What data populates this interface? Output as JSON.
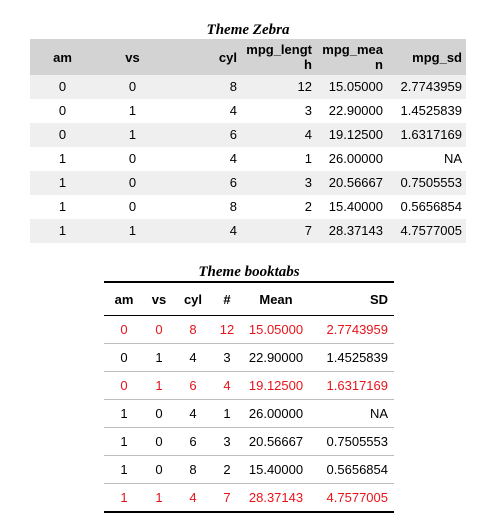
{
  "zebra_table": {
    "caption": "Theme Zebra",
    "headers": [
      "am",
      "vs",
      "cyl",
      "mpg_length",
      "mpg_mean",
      "mpg_sd"
    ],
    "rows": [
      [
        "0",
        "0",
        "8",
        "12",
        "15.05000",
        "2.7743959"
      ],
      [
        "0",
        "1",
        "4",
        "3",
        "22.90000",
        "1.4525839"
      ],
      [
        "0",
        "1",
        "6",
        "4",
        "19.12500",
        "1.6317169"
      ],
      [
        "1",
        "0",
        "4",
        "1",
        "26.00000",
        "NA"
      ],
      [
        "1",
        "0",
        "6",
        "3",
        "20.56667",
        "0.7505553"
      ],
      [
        "1",
        "0",
        "8",
        "2",
        "15.40000",
        "0.5656854"
      ],
      [
        "1",
        "1",
        "4",
        "7",
        "28.37143",
        "4.7577005"
      ]
    ]
  },
  "booktabs_table": {
    "caption": "Theme booktabs",
    "headers": [
      "am",
      "vs",
      "cyl",
      "#",
      "Mean",
      "SD"
    ],
    "highlight_color": "#e8141a",
    "rows": [
      [
        "0",
        "0",
        "8",
        "12",
        "15.05000",
        "2.7743959"
      ],
      [
        "0",
        "1",
        "4",
        "3",
        "22.90000",
        "1.4525839"
      ],
      [
        "0",
        "1",
        "6",
        "4",
        "19.12500",
        "1.6317169"
      ],
      [
        "1",
        "0",
        "4",
        "1",
        "26.00000",
        "NA"
      ],
      [
        "1",
        "0",
        "6",
        "3",
        "20.56667",
        "0.7505553"
      ],
      [
        "1",
        "0",
        "8",
        "2",
        "15.40000",
        "0.5656854"
      ],
      [
        "1",
        "1",
        "4",
        "7",
        "28.37143",
        "4.7577005"
      ]
    ]
  }
}
